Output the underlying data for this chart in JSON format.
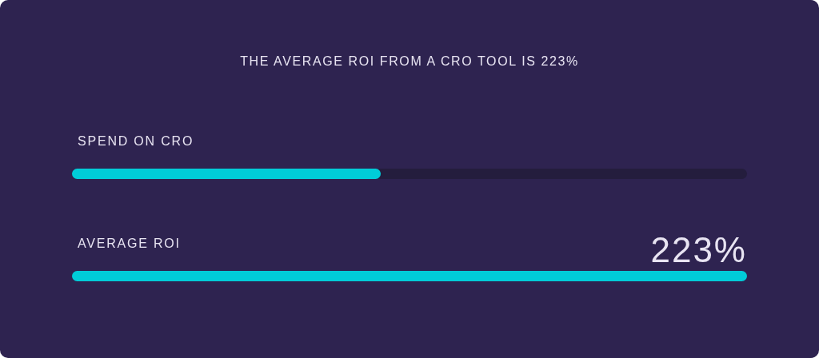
{
  "chart_data": {
    "type": "bar",
    "orientation": "horizontal",
    "title": "THE AVERAGE ROI FROM A CRO TOOL IS 223%",
    "categories": [
      "SPEND ON CRO",
      "AVERAGE ROI"
    ],
    "values": [
      102,
      223
    ],
    "value_labels": [
      null,
      "223%"
    ],
    "color": "#00ccd8"
  }
}
